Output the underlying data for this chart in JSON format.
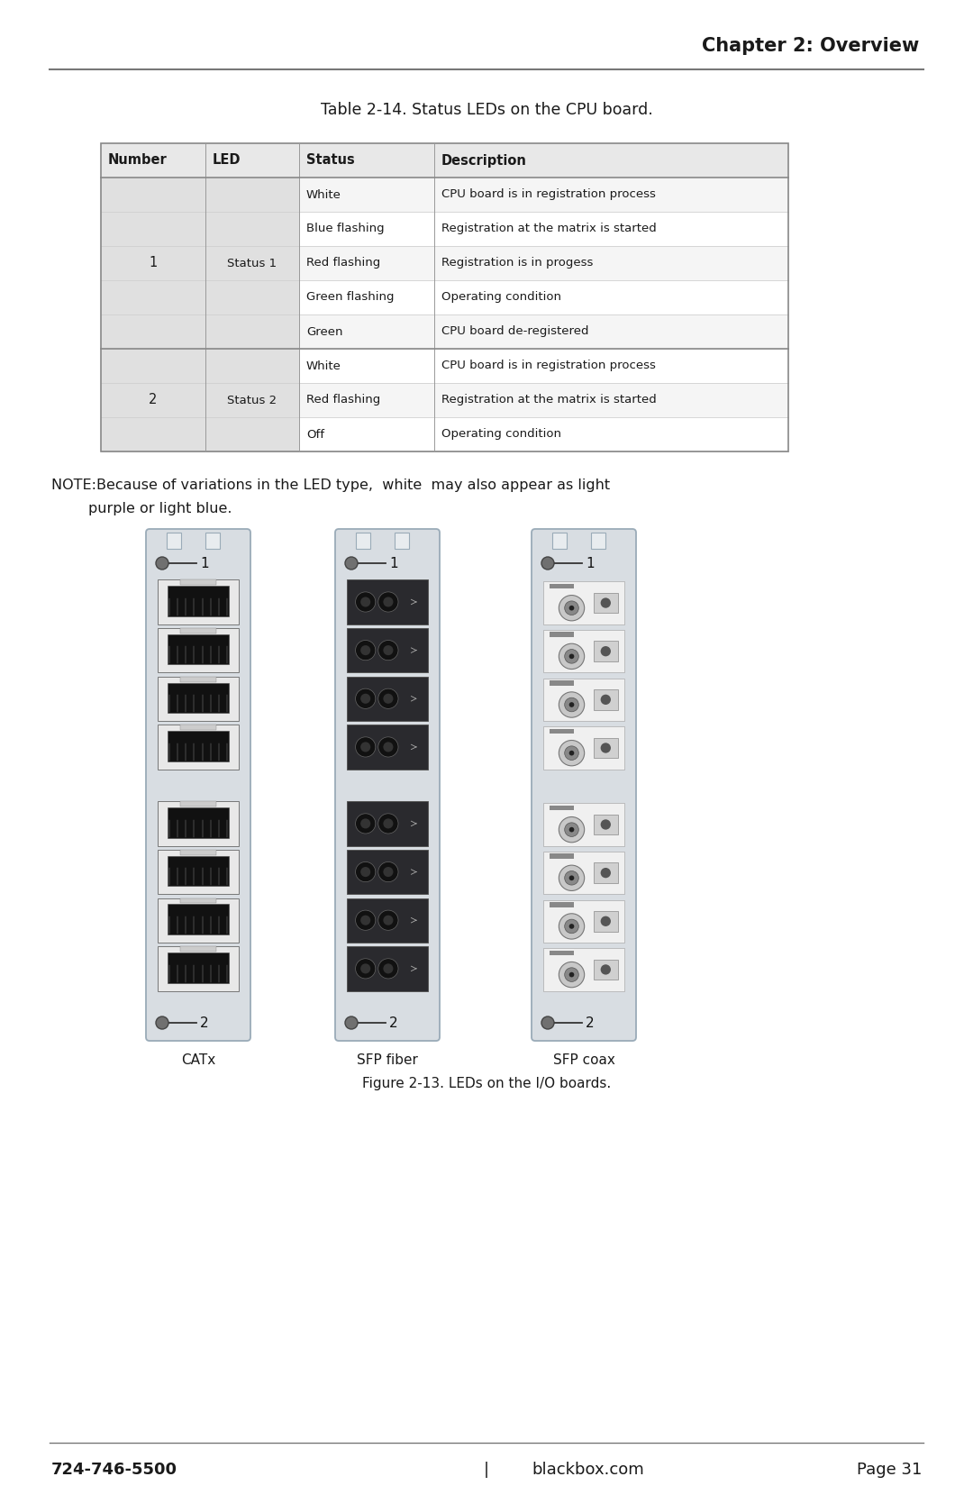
{
  "page_title": "Chapter 2: Overview",
  "table_title": "Table 2-14. Status LEDs on the CPU board.",
  "table_headers": [
    "Number",
    "LED",
    "Status",
    "Description"
  ],
  "table_rows": [
    [
      "1",
      "Status 1",
      "White",
      "CPU board is in registration process"
    ],
    [
      "1",
      "Status 1",
      "Blue flashing",
      "Registration at the matrix is started"
    ],
    [
      "1",
      "Status 1",
      "Red flashing",
      "Registration is in progess"
    ],
    [
      "1",
      "Status 1",
      "Green flashing",
      "Operating condition"
    ],
    [
      "1",
      "Status 1",
      "Green",
      "CPU board de-registered"
    ],
    [
      "2",
      "Status 2",
      "White",
      "CPU board is in registration process"
    ],
    [
      "2",
      "Status 2",
      "Red flashing",
      "Registration at the matrix is started"
    ],
    [
      "2",
      "Status 2",
      "Off",
      "Operating condition"
    ]
  ],
  "note_line1": "NOTE:Because of variations in the LED type,  white  may also appear as light",
  "note_line2": "        purple or light blue.",
  "figure_caption": "Figure 2-13. LEDs on the I/O boards.",
  "board_labels": [
    "CATx",
    "SFP fiber",
    "SFP coax"
  ],
  "footer_left": "724-746-5500",
  "footer_mid": "|",
  "footer_right_left": "blackbox.com",
  "footer_page": "Page 31",
  "bg_color": "#ffffff",
  "header_bg": "#e8e8e8",
  "row_alt_bg": "#f5f5f5",
  "row_bg": "#ffffff",
  "border_color": "#aaaaaa",
  "text_color": "#1a1a1a",
  "title_color": "#1a1a1a",
  "merged_bg": "#e0e0e0",
  "board_color": "#d8dde2",
  "board_border": "#9aabb8"
}
